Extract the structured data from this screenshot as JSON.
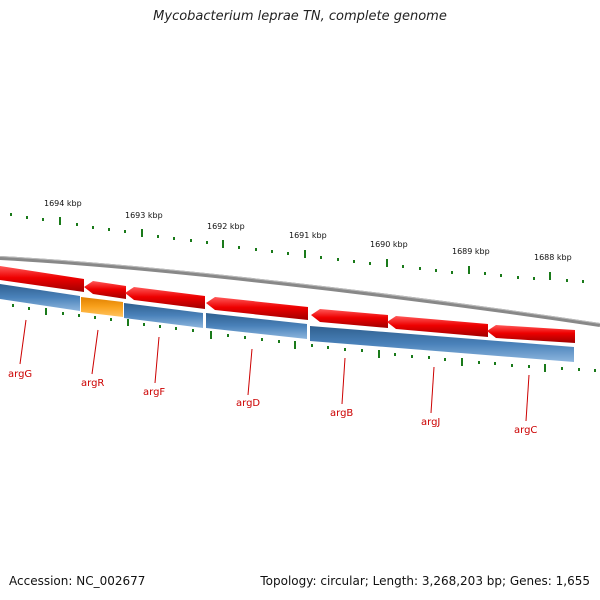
{
  "title": "Mycobacterium leprae TN, complete genome",
  "footer": {
    "accession": "Accession: NC_002677",
    "summary": "Topology: circular; Length: 3,268,203 bp; Genes: 1,655"
  },
  "colors": {
    "forward_cds": "#e60000",
    "reverse_cds": "#dd0000",
    "gene_track": "#3f74a8",
    "highlight_gene": "#f59a1c",
    "backbone": "#888888",
    "tick": "#1a7a1a",
    "label": "#cc0000"
  },
  "ruler": {
    "labels": [
      "1694 kbp",
      "1693 kbp",
      "1692 kbp",
      "1691 kbp",
      "1690 kbp",
      "1689 kbp",
      "1688 kbp"
    ]
  },
  "genes": [
    {
      "name": "argG"
    },
    {
      "name": "argR"
    },
    {
      "name": "argF"
    },
    {
      "name": "argD"
    },
    {
      "name": "argB"
    },
    {
      "name": "argJ"
    },
    {
      "name": "argC"
    }
  ]
}
